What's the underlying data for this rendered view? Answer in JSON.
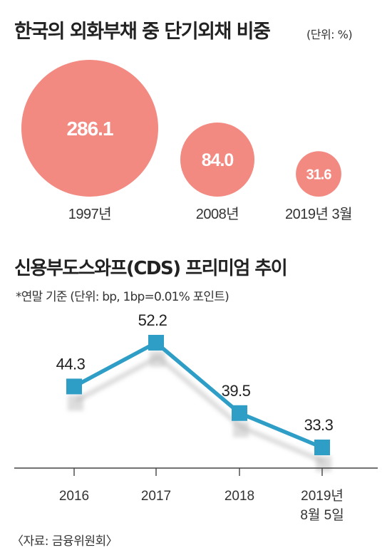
{
  "header": {
    "title": "한국의 외화부채 중 단기외채 비중",
    "unit": "(단위: %)"
  },
  "colors": {
    "bubble": "#f38a82",
    "line": "#2e9ec7",
    "marker": "#2e9ec7",
    "axis": "#444444"
  },
  "chart_data": [
    {
      "type": "bubble",
      "title": "한국의 외화부채 중 단기외채 비중",
      "unit": "(단위: %)",
      "categories": [
        "1997년",
        "2008년",
        "2019년 3월"
      ],
      "values": [
        286.1,
        84.0,
        31.6
      ],
      "value_labels": [
        "286.1",
        "84.0",
        "31.6"
      ]
    },
    {
      "type": "line",
      "title": "신용부도스와프(CDS) 프리미엄 추이",
      "subtitle": "*연말 기준  (단위: bp, 1bp=0.01% 포인트)",
      "categories": [
        "2016",
        "2017",
        "2018",
        "2019년 8월 5일"
      ],
      "category_lines": [
        [
          "2016"
        ],
        [
          "2017"
        ],
        [
          "2018"
        ],
        [
          "2019년",
          "8월 5일"
        ]
      ],
      "values": [
        44.3,
        52.2,
        39.5,
        33.3
      ],
      "value_labels": [
        "44.3",
        "52.2",
        "39.5",
        "33.3"
      ],
      "grid": false
    }
  ],
  "section2": {
    "title": "신용부도스와프(CDS) 프리미엄 추이",
    "subtitle": "*연말 기준  (단위: bp, 1bp=0.01% 포인트)"
  },
  "source": "〈자료: 금융위원회〉"
}
